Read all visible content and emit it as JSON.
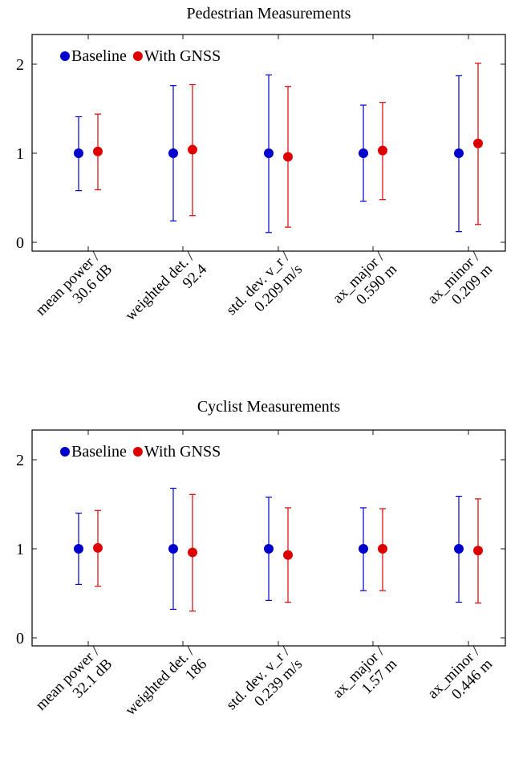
{
  "colors": {
    "baseline": "#0000cc",
    "gnss": "#dd0000"
  },
  "chart_data": [
    {
      "type": "scatter",
      "subtype": "error-bar",
      "title": "Pedestrian Measurements",
      "categories": [
        [
          "mean power /",
          "30.6 dB"
        ],
        [
          "weighted det. /",
          "92.4"
        ],
        [
          "std. dev. v_r /",
          "0.209 m/s"
        ],
        [
          "ax_major /",
          "0.590 m"
        ],
        [
          "ax_minor /",
          "0.209 m"
        ]
      ],
      "ylim": [
        -0.1,
        2.3
      ],
      "yticks": [
        0,
        1,
        2
      ],
      "legend_position": "top-left",
      "series": [
        {
          "name": "Baseline",
          "color": "#0000cc",
          "values": [
            1.0,
            1.0,
            1.0,
            1.0,
            1.0
          ],
          "err_low": [
            0.58,
            0.24,
            0.11,
            0.46,
            0.12
          ],
          "err_high": [
            1.41,
            1.76,
            1.88,
            1.54,
            1.87
          ]
        },
        {
          "name": "With GNSS",
          "color": "#dd0000",
          "values": [
            1.02,
            1.04,
            0.96,
            1.03,
            1.11
          ],
          "err_low": [
            0.59,
            0.3,
            0.17,
            0.48,
            0.2
          ],
          "err_high": [
            1.44,
            1.77,
            1.75,
            1.57,
            2.01
          ]
        }
      ]
    },
    {
      "type": "scatter",
      "subtype": "error-bar",
      "title": "Cyclist Measurements",
      "categories": [
        [
          "mean power /",
          "32.1 dB"
        ],
        [
          "weighted det. /",
          "186"
        ],
        [
          "std. dev. v_r /",
          "0.239 m/s"
        ],
        [
          "ax_major /",
          "1.57 m"
        ],
        [
          "ax_minor /",
          "0.446 m"
        ]
      ],
      "ylim": [
        -0.1,
        2.3
      ],
      "yticks": [
        0,
        1,
        2
      ],
      "legend_position": "top-left",
      "series": [
        {
          "name": "Baseline",
          "color": "#0000cc",
          "values": [
            1.0,
            1.0,
            1.0,
            1.0,
            1.0
          ],
          "err_low": [
            0.6,
            0.32,
            0.42,
            0.53,
            0.4
          ],
          "err_high": [
            1.4,
            1.68,
            1.58,
            1.46,
            1.59
          ]
        },
        {
          "name": "With GNSS",
          "color": "#dd0000",
          "values": [
            1.01,
            0.96,
            0.93,
            1.0,
            0.98
          ],
          "err_low": [
            0.58,
            0.3,
            0.4,
            0.53,
            0.39
          ],
          "err_high": [
            1.43,
            1.61,
            1.46,
            1.45,
            1.56
          ]
        }
      ]
    }
  ]
}
